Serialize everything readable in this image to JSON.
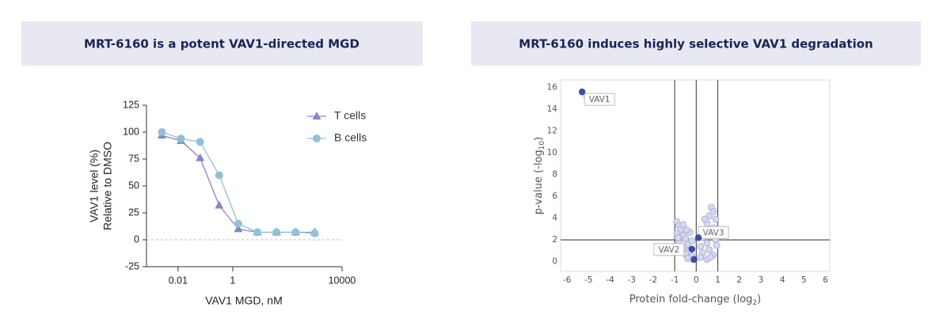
{
  "chart_data": [
    {
      "type": "line",
      "title": "MRT-6160 is a potent VAV1-directed MGD",
      "xlabel": "VAV1 MGD, nM",
      "ylabel": [
        "VAV1 level (%)",
        "Relative to DMSO"
      ],
      "xscale": "log",
      "x": [
        0.00256,
        0.0128,
        0.064,
        0.32,
        1.6,
        8,
        40,
        200,
        1000
      ],
      "series": [
        {
          "name": "T cells",
          "color": "#8a86c4",
          "marker": "triangle",
          "values": [
            97,
            92,
            76,
            32,
            10,
            7,
            7,
            7,
            7
          ]
        },
        {
          "name": "B cells",
          "color": "#8fc1d8",
          "marker": "circle",
          "values": [
            100,
            94,
            91,
            60,
            15,
            7,
            7,
            7,
            6
          ]
        }
      ],
      "xlim": [
        0.0007,
        10000
      ],
      "xticks": [
        0.01,
        1,
        10000
      ],
      "ylim": [
        -25,
        125
      ],
      "yticks": [
        -25,
        0,
        25,
        50,
        75,
        100,
        125
      ],
      "hline": 0
    },
    {
      "type": "scatter",
      "title": "MRT-6160 induces highly selective VAV1 degradation",
      "xlabel": [
        "Protein fold-change (log",
        "2",
        ")"
      ],
      "ylabel": [
        "p-value (-log",
        "10",
        ")"
      ],
      "xlim": [
        -6.3,
        6.2
      ],
      "xticks": [
        -6,
        -5,
        -4,
        -3,
        -2,
        -1,
        0,
        1,
        2,
        3,
        4,
        5,
        6
      ],
      "ylim": [
        -0.9,
        16.7
      ],
      "yticks": [
        0,
        2,
        4,
        6,
        8,
        10,
        12,
        14,
        16
      ],
      "vlines": [
        -1,
        0,
        1
      ],
      "hlines": [
        2
      ],
      "series": [
        {
          "color": "#d5d8ee",
          "x": [
            -0.9,
            -0.8,
            -0.7,
            -0.9,
            -0.6,
            -0.5,
            -0.8,
            -0.4,
            -0.6,
            -0.3,
            -0.5,
            -0.2,
            -0.4,
            -0.7,
            -0.3,
            -0.6,
            -0.2,
            -0.85,
            -0.45,
            -0.15,
            0.7,
            0.8,
            0.6,
            0.9,
            0.5,
            0.8,
            0.4,
            0.7,
            0.3,
            0.9,
            0.5,
            0.2,
            0.6,
            0.3,
            0.8,
            0.2,
            0.5,
            0.95,
            0.4,
            0.65
          ],
          "values": [
            3.7,
            3.3,
            3.0,
            2.6,
            2.4,
            2.1,
            1.8,
            1.6,
            1.3,
            1.0,
            0.7,
            0.5,
            0.3,
            0.9,
            2.7,
            3.4,
            1.9,
            2.2,
            2.9,
            0.2,
            5.0,
            4.6,
            4.2,
            3.9,
            3.5,
            3.1,
            2.8,
            2.5,
            2.2,
            2.0,
            1.7,
            1.4,
            1.1,
            0.8,
            0.6,
            0.4,
            0.2,
            1.5,
            3.9,
            0.4
          ]
        },
        {
          "color": "#3b4ba8",
          "x": [
            -5.3,
            -0.2,
            -0.1,
            0.1
          ],
          "values": [
            15.6,
            1.15,
            0.2,
            2.2
          ],
          "labels": [
            "VAV1",
            "VAV2",
            null,
            "VAV3"
          ]
        }
      ]
    }
  ]
}
